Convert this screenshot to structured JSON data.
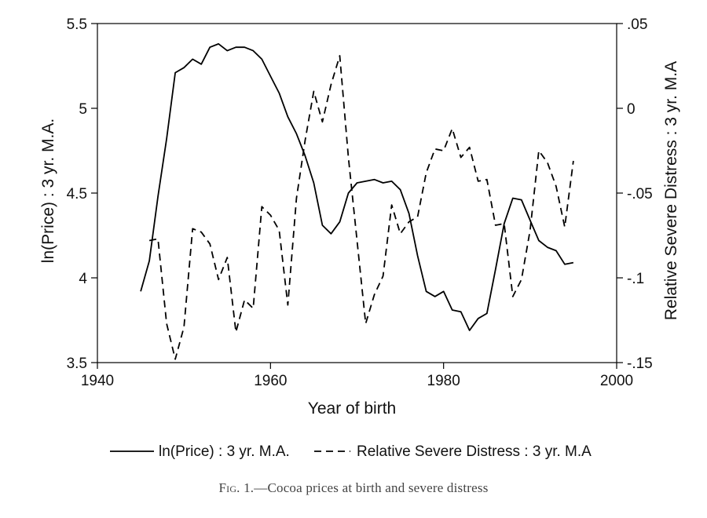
{
  "chart_data": {
    "type": "line",
    "xlabel": "Year of birth",
    "ylabel_left": "ln(Price) : 3 yr. M.A.",
    "ylabel_right": "Relative Severe Distress : 3 yr. M.A",
    "xlim": [
      1940,
      2000
    ],
    "ylim_left": [
      3.5,
      5.5
    ],
    "ylim_right": [
      -0.15,
      0.05
    ],
    "x_ticks": [
      1940,
      1960,
      1980,
      2000
    ],
    "y_ticks_left": [
      "3.5",
      "4",
      "4.5",
      "5",
      "5.5"
    ],
    "y_ticks_right": [
      "-.15",
      "-.1",
      "-.05",
      "0",
      ".05"
    ],
    "grid": false,
    "legend_placement": "bottom",
    "series": [
      {
        "name": "ln(Price) : 3 yr. M.A.",
        "axis": "left",
        "style": "solid",
        "x": [
          1945,
          1946,
          1947,
          1948,
          1949,
          1950,
          1951,
          1952,
          1953,
          1954,
          1955,
          1956,
          1957,
          1958,
          1959,
          1960,
          1961,
          1962,
          1963,
          1964,
          1965,
          1966,
          1967,
          1968,
          1969,
          1970,
          1971,
          1972,
          1973,
          1974,
          1975,
          1976,
          1977,
          1978,
          1979,
          1980,
          1981,
          1982,
          1983,
          1984,
          1985,
          1986,
          1987,
          1988,
          1989,
          1990,
          1991,
          1992,
          1993,
          1994,
          1995
        ],
        "y": [
          3.92,
          4.1,
          4.48,
          4.82,
          5.21,
          5.24,
          5.29,
          5.26,
          5.36,
          5.38,
          5.34,
          5.36,
          5.36,
          5.34,
          5.29,
          5.19,
          5.09,
          4.95,
          4.85,
          4.72,
          4.56,
          4.31,
          4.26,
          4.33,
          4.5,
          4.56,
          4.57,
          4.58,
          4.56,
          4.57,
          4.52,
          4.38,
          4.13,
          3.92,
          3.89,
          3.92,
          3.81,
          3.8,
          3.69,
          3.76,
          3.79,
          4.05,
          4.32,
          4.47,
          4.46,
          4.34,
          4.22,
          4.18,
          4.16,
          4.08,
          4.09
        ]
      },
      {
        "name": "Relative Severe Distress : 3 yr. M.A",
        "axis": "right",
        "style": "dashed",
        "x": [
          1946,
          1947,
          1948,
          1949,
          1950,
          1951,
          1952,
          1953,
          1954,
          1955,
          1956,
          1957,
          1958,
          1959,
          1960,
          1961,
          1962,
          1963,
          1964,
          1965,
          1966,
          1967,
          1968,
          1969,
          1970,
          1971,
          1972,
          1973,
          1974,
          1975,
          1976,
          1977,
          1978,
          1979,
          1980,
          1981,
          1982,
          1983,
          1984,
          1985,
          1986,
          1987,
          1988,
          1989,
          1990,
          1991,
          1992,
          1993,
          1994,
          1995
        ],
        "y": [
          -0.078,
          -0.077,
          -0.127,
          -0.148,
          -0.129,
          -0.071,
          -0.073,
          -0.08,
          -0.101,
          -0.088,
          -0.132,
          -0.113,
          -0.118,
          -0.058,
          -0.063,
          -0.072,
          -0.116,
          -0.053,
          -0.019,
          0.01,
          -0.008,
          0.014,
          0.031,
          -0.029,
          -0.078,
          -0.127,
          -0.11,
          -0.099,
          -0.057,
          -0.074,
          -0.067,
          -0.064,
          -0.038,
          -0.024,
          -0.025,
          -0.012,
          -0.029,
          -0.023,
          -0.043,
          -0.042,
          -0.069,
          -0.068,
          -0.111,
          -0.101,
          -0.072,
          -0.025,
          -0.032,
          -0.046,
          -0.07,
          -0.031
        ]
      }
    ]
  },
  "caption": {
    "prefix": "Fig. 1.",
    "text": "—Cocoa prices at birth and severe distress"
  }
}
